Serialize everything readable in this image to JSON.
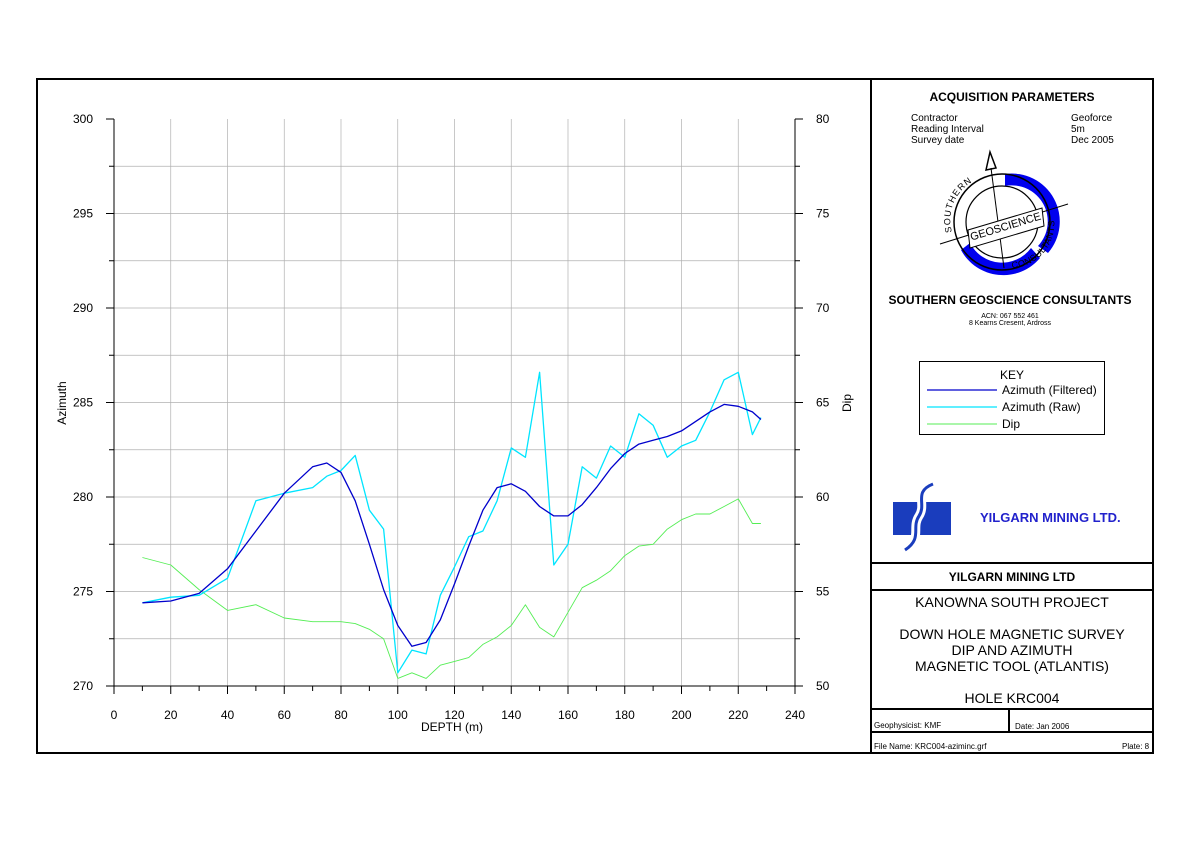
{
  "acquisition": {
    "heading": "ACQUISITION PARAMETERS",
    "rows": [
      {
        "label": "Contractor",
        "value": "Geoforce"
      },
      {
        "label": "Reading Interval",
        "value": "5m"
      },
      {
        "label": "Survey date",
        "value": "Dec 2005"
      }
    ]
  },
  "logo": {
    "ring_top_text": "SOUTHERN",
    "band_text": "GEOSCIENCE",
    "ring_bottom_text": "CONSULTANTS",
    "accent": "#0000ee"
  },
  "company": {
    "name": "SOUTHERN GEOSCIENCE CONSULTANTS",
    "acn": "ACN: 067 552 461",
    "address": "8 Kearns Cresent, Ardross"
  },
  "key": {
    "title": "KEY",
    "entries": [
      {
        "label": "Azimuth (Filtered)",
        "color": "#0000cc"
      },
      {
        "label": "Azimuth (Raw)",
        "color": "#00e5ff"
      },
      {
        "label": "Dip",
        "color": "#55ee55"
      }
    ]
  },
  "client": {
    "name": "YILGARN MINING LTD.",
    "color": "#2222cc",
    "logo_color": "#1a3dbd"
  },
  "title_block": {
    "client": "YILGARN MINING LTD",
    "project": "KANOWNA SOUTH PROJECT",
    "survey_line1": "DOWN HOLE MAGNETIC SURVEY",
    "survey_line2": "DIP AND AZIMUTH",
    "survey_line3": "MAGNETIC TOOL (ATLANTIS)",
    "hole": "HOLE KRC004",
    "geophysicist": "Geophysicist: KMF",
    "date": "Date: Jan 2006",
    "file": "File Name: KRC004-aziminc.grf",
    "plate": "Plate: 8"
  },
  "chart_data": {
    "type": "line",
    "xlabel": "DEPTH (m)",
    "ylabel": "Azimuth",
    "y2label": "Dip",
    "xlim": [
      0,
      240
    ],
    "ylim": [
      270,
      300
    ],
    "y2lim": [
      50,
      80
    ],
    "xticks": [
      0,
      20,
      40,
      60,
      80,
      100,
      120,
      140,
      160,
      180,
      200,
      220,
      240
    ],
    "yticks": [
      270,
      275,
      280,
      285,
      290,
      295,
      300
    ],
    "y2ticks": [
      50,
      55,
      60,
      65,
      70,
      75,
      80
    ],
    "grid": true,
    "legend": "side panel",
    "series": [
      {
        "name": "Azimuth (Filtered)",
        "axis": "left",
        "color": "#0000cc",
        "x": [
          10,
          20,
          30,
          40,
          50,
          60,
          70,
          75,
          80,
          85,
          90,
          95,
          100,
          105,
          110,
          115,
          120,
          125,
          130,
          135,
          140,
          145,
          150,
          155,
          160,
          165,
          170,
          175,
          180,
          185,
          190,
          195,
          200,
          205,
          210,
          215,
          220,
          225,
          228
        ],
        "y": [
          274.4,
          274.5,
          274.9,
          276.2,
          278.2,
          280.2,
          281.6,
          281.8,
          281.3,
          279.8,
          277.5,
          275.1,
          273.2,
          272.1,
          272.3,
          273.5,
          275.4,
          277.4,
          279.3,
          280.5,
          280.7,
          280.3,
          279.5,
          279.0,
          279.0,
          279.6,
          280.5,
          281.5,
          282.3,
          282.8,
          283.0,
          283.2,
          283.5,
          284.0,
          284.5,
          284.9,
          284.8,
          284.5,
          284.1
        ]
      },
      {
        "name": "Azimuth (Raw)",
        "axis": "left",
        "color": "#00e5ff",
        "x": [
          10,
          20,
          30,
          40,
          50,
          60,
          70,
          75,
          80,
          85,
          90,
          95,
          100,
          105,
          110,
          115,
          120,
          125,
          130,
          135,
          140,
          145,
          150,
          155,
          160,
          165,
          170,
          175,
          180,
          185,
          190,
          195,
          200,
          205,
          210,
          215,
          220,
          225,
          228
        ],
        "y": [
          274.4,
          274.7,
          274.8,
          275.7,
          279.8,
          280.2,
          280.5,
          281.1,
          281.4,
          282.2,
          279.3,
          278.3,
          270.7,
          271.9,
          271.7,
          274.8,
          276.3,
          277.9,
          278.2,
          279.8,
          282.6,
          282.1,
          286.6,
          276.4,
          277.5,
          281.6,
          281.0,
          282.7,
          282.1,
          284.4,
          283.8,
          282.1,
          282.7,
          283.0,
          284.5,
          286.2,
          286.6,
          283.3,
          284.2
        ]
      },
      {
        "name": "Dip",
        "axis": "right",
        "color": "#55ee55",
        "x": [
          10,
          20,
          30,
          40,
          50,
          60,
          70,
          75,
          80,
          85,
          90,
          95,
          100,
          105,
          110,
          115,
          120,
          125,
          130,
          135,
          140,
          145,
          150,
          155,
          160,
          165,
          170,
          175,
          180,
          185,
          190,
          195,
          200,
          205,
          210,
          215,
          220,
          225,
          228
        ],
        "y": [
          56.8,
          56.4,
          55.1,
          54.0,
          54.3,
          53.6,
          53.4,
          53.4,
          53.4,
          53.3,
          53.0,
          52.5,
          50.4,
          50.7,
          50.4,
          51.1,
          51.3,
          51.5,
          52.2,
          52.6,
          53.2,
          54.3,
          53.1,
          52.6,
          53.9,
          55.2,
          55.6,
          56.1,
          56.9,
          57.4,
          57.5,
          58.3,
          58.8,
          59.1,
          59.1,
          59.5,
          59.9,
          58.6,
          58.6
        ]
      }
    ]
  }
}
